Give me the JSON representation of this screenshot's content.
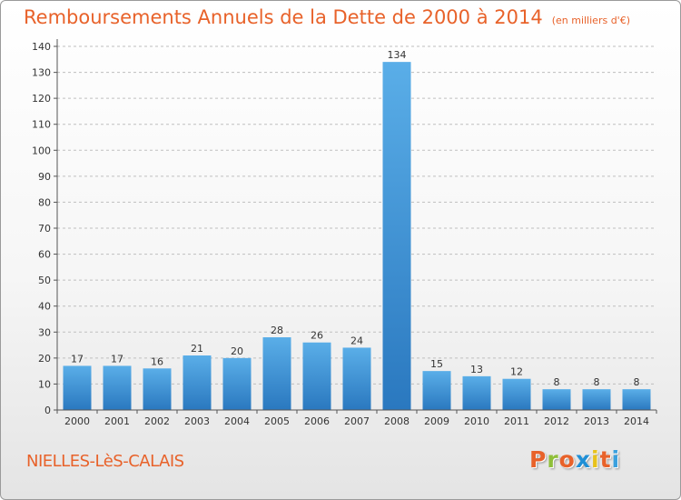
{
  "header": {
    "title": "Remboursements Annuels de la Dette de 2000 à 2014",
    "unit": "(en milliers d'€)"
  },
  "footer": {
    "place": "NIELLES-LèS-CALAIS",
    "logo_text": "Proxiti",
    "logo_colors": [
      "#e8622a",
      "#8fbf3a",
      "#e8622a",
      "#1f8fd6",
      "#e8c21a",
      "#e8622a",
      "#3aa0de"
    ]
  },
  "colors": {
    "bar_top": "#5aaee8",
    "bar_bottom": "#2a78bf",
    "axis": "#555555",
    "grid": "#bfbfbf",
    "text": "#333333"
  },
  "chart_data": {
    "type": "bar",
    "categories": [
      "2000",
      "2001",
      "2002",
      "2003",
      "2004",
      "2005",
      "2006",
      "2007",
      "2008",
      "2009",
      "2010",
      "2011",
      "2012",
      "2013",
      "2014"
    ],
    "values": [
      17,
      17,
      16,
      21,
      20,
      28,
      26,
      24,
      134,
      15,
      13,
      12,
      8,
      8,
      8
    ],
    "data_labels": [
      "17",
      "17",
      "16",
      "21",
      "20",
      "28",
      "26",
      "24",
      "134",
      "15",
      "13",
      "12",
      "8",
      "8",
      "8"
    ],
    "title": "Remboursements Annuels de la Dette de 2000 à 2014",
    "xlabel": "",
    "ylabel": "",
    "ylim": [
      0,
      140
    ],
    "yticks": [
      0,
      10,
      20,
      30,
      40,
      50,
      60,
      70,
      80,
      90,
      100,
      110,
      120,
      130,
      140
    ],
    "grid": true,
    "legend": "none"
  }
}
